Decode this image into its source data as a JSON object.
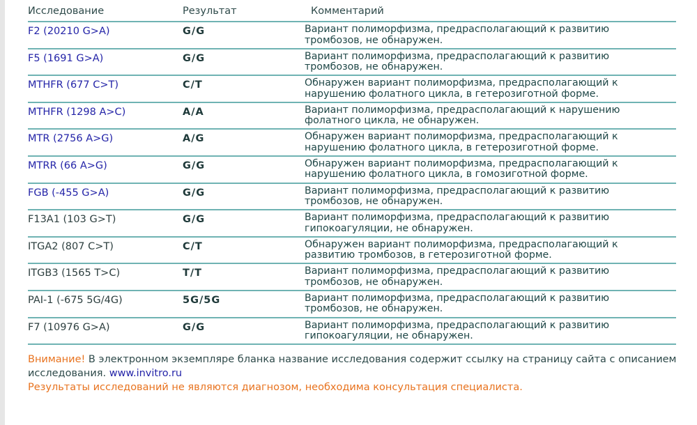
{
  "headers": {
    "test": "Исследование",
    "result": "Результат",
    "comment": "Комментарий"
  },
  "rows": [
    {
      "test": "F2 (20210 G>A)",
      "link": true,
      "result": "G/G",
      "comment": [
        "Вариант полиморфизма, предрасполагающий к развитию",
        "тромбозов, не обнаружен."
      ]
    },
    {
      "test": "F5 (1691 G>A)",
      "link": true,
      "result": "G/G",
      "comment": [
        "Вариант полиморфизма, предрасполагающий к развитию",
        "тромбозов, не обнаружен."
      ]
    },
    {
      "test": "MTHFR (677 C>T)",
      "link": true,
      "result": "C/T",
      "comment": [
        "Обнаружен вариант полиморфизма, предрасполагающий к",
        "нарушению фолатного цикла, в гетерозиготной форме."
      ]
    },
    {
      "test": "MTHFR (1298 A>C)",
      "link": true,
      "result": "A/A",
      "comment": [
        "Вариант полиморфизма, предрасполагающий к нарушению",
        "фолатного цикла, не обнаружен."
      ]
    },
    {
      "test": "MTR (2756 A>G)",
      "link": true,
      "result": "A/G",
      "comment": [
        "Обнаружен вариант полиморфизма, предрасполагающий к",
        "нарушению фолатного цикла, в гетерозиготной форме."
      ]
    },
    {
      "test": "MTRR (66 A>G)",
      "link": true,
      "result": "G/G",
      "comment": [
        "Обнаружен вариант полиморфизма, предрасполагающий к",
        "нарушению фолатного цикла, в гомозиготной форме."
      ]
    },
    {
      "test": "FGB (-455 G>A)",
      "link": true,
      "result": "G/G",
      "comment": [
        "Вариант полиморфизма, предрасполагающий к развитию",
        "тромбозов, не обнаружен."
      ]
    },
    {
      "test": "F13A1 (103 G>T)",
      "link": false,
      "result": "G/G",
      "comment": [
        "Вариант полиморфизма, предрасполагающий к развитию",
        "гипокоагуляции, не обнаружен."
      ]
    },
    {
      "test": "ITGA2 (807 C>T)",
      "link": false,
      "result": "C/T",
      "comment": [
        "Обнаружен вариант полиморфизма, предрасполагающий к",
        "развитию тромбозов, в гетерозиготной форме."
      ]
    },
    {
      "test": "ITGB3 (1565 T>C)",
      "link": false,
      "result": "T/T",
      "comment": [
        "Вариант полиморфизма, предрасполагающий к развитию",
        "тромбозов, не обнаружен."
      ]
    },
    {
      "test": "PAI-1 (-675 5G/4G)",
      "link": false,
      "result": "5G/5G",
      "comment": [
        "Вариант полиморфизма, предрасполагающий к развитию",
        "тромбозов, не обнаружен."
      ]
    },
    {
      "test": "F7 (10976 G>A)",
      "link": false,
      "result": "G/G",
      "comment": [
        "Вариант полиморфизма, предрасполагающий к развитию",
        "гипокоагуляции, не обнаружен."
      ]
    }
  ],
  "notice": {
    "attention": "Внимание!",
    "text": " В электронном экземпляре бланка название исследования содержит ссылку на страницу сайта с описанием исследования. ",
    "link": "www.invitro.ru",
    "disclaimer": "Результаты исследований не являются диагнозом, необходима консультация специалиста."
  },
  "colors": {
    "link": "#2424a8",
    "warning": "#e8731f",
    "rule": "#6fb3b3"
  }
}
